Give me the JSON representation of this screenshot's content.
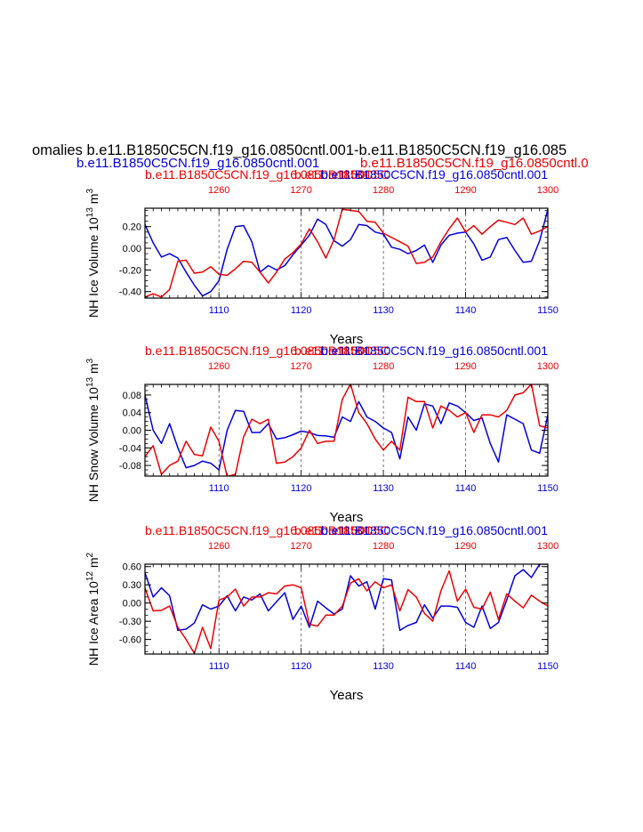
{
  "header": {
    "main_title": "omalies b.e11.B1850C5CN.f19_g16.0850cntl.001-b.e11.B1850C5CN.f19_g16.085",
    "left_case": "b.e11.B1850C5CN.f19_g16.0850cntl.001",
    "right_case": "b.e11.B1850C5CN.f19_g16.0850cntl.0"
  },
  "colors": {
    "red": "#ee0000",
    "blue": "#0000dd",
    "axis": "#000000",
    "grid": "#555555"
  },
  "chart_data": [
    {
      "type": "line",
      "ylabel_main": "NH Ice Volume 10",
      "ylabel_exp": "13",
      "ylabel_unit": " m",
      "ylabel_unit_exp": "3",
      "xlabel": "Years",
      "top_title_red": "b.e11.B1850C5CN.f19_g16.0850cntl.001",
      "top_title_blue": "b.e11.B1850C5CN.f19_g16.0850cntl.001",
      "top_title_overlap": "b.e11.B1850C5C",
      "xlim_bottom": [
        1101,
        1150
      ],
      "xlim_top": [
        1251,
        1300
      ],
      "xticks_bottom": [
        "1110",
        "1120",
        "1130",
        "1140",
        "1150"
      ],
      "xticks_top": [
        "1260",
        "1270",
        "1280",
        "1290",
        "1300"
      ],
      "ylim": [
        -0.46,
        0.37
      ],
      "yticks": [
        -0.4,
        -0.2,
        0.0,
        0.2
      ],
      "ytick_labels": [
        "-0.40",
        "-0.20",
        "0.00",
        "0.20"
      ],
      "yminor": 0.05,
      "grid_x": [
        1110,
        1120,
        1130,
        1140
      ],
      "series": [
        {
          "name": "b.e11.B1850C5CN.f19_g16.0850cntl.001 (blue)",
          "color": "blue",
          "values": [
            0.22,
            0.05,
            -0.08,
            -0.05,
            -0.09,
            -0.22,
            -0.34,
            -0.44,
            -0.4,
            -0.3,
            -0.01,
            0.2,
            0.21,
            0.06,
            -0.22,
            -0.16,
            -0.2,
            -0.16,
            -0.06,
            0.03,
            0.12,
            0.27,
            0.22,
            0.07,
            0.02,
            0.08,
            0.22,
            0.21,
            0.15,
            0.13,
            0.01,
            -0.01,
            -0.05,
            -0.02,
            0.03,
            -0.13,
            0.03,
            0.12,
            0.14,
            0.15,
            0.04,
            -0.11,
            -0.08,
            0.08,
            0.1,
            -0.02,
            -0.13,
            -0.12,
            0.07,
            0.36
          ]
        },
        {
          "name": "b.e11.B1850C5CN.f19_g16.0850cntl.001 (red)",
          "color": "red",
          "values": [
            -0.45,
            -0.42,
            -0.45,
            -0.38,
            -0.12,
            -0.11,
            -0.23,
            -0.22,
            -0.17,
            -0.24,
            -0.25,
            -0.19,
            -0.12,
            -0.13,
            -0.22,
            -0.32,
            -0.22,
            -0.1,
            -0.04,
            0.04,
            0.18,
            0.06,
            -0.09,
            0.08,
            0.36,
            0.35,
            0.34,
            0.25,
            0.24,
            0.14,
            0.1,
            0.06,
            0.02,
            -0.14,
            -0.13,
            -0.08,
            0.06,
            0.18,
            0.28,
            0.15,
            0.21,
            0.13,
            0.2,
            0.26,
            0.24,
            0.22,
            0.28,
            0.13,
            0.16,
            0.2
          ]
        }
      ]
    },
    {
      "type": "line",
      "ylabel_main": "NH Snow Volume 10",
      "ylabel_exp": "13",
      "ylabel_unit": " m",
      "ylabel_unit_exp": "3",
      "xlabel": "Years",
      "top_title_red": "b.e11.B1850C5CN.f19_g16.0850cntl.001",
      "top_title_blue": "b.e11.B1850C5CN.f19_g16.0850cntl.001",
      "top_title_overlap": "b.e11.B1850C5C",
      "xlim_bottom": [
        1101,
        1150
      ],
      "xlim_top": [
        1251,
        1300
      ],
      "xticks_bottom": [
        "1110",
        "1120",
        "1130",
        "1140",
        "1150"
      ],
      "xticks_top": [
        "1260",
        "1270",
        "1280",
        "1290",
        "1300"
      ],
      "ylim": [
        -0.104,
        0.104
      ],
      "yticks": [
        -0.08,
        -0.04,
        0.0,
        0.04,
        0.08
      ],
      "ytick_labels": [
        "-0.08",
        "-0.04",
        "0.00",
        "0.04",
        "0.08"
      ],
      "yminor": 0.01,
      "grid_x": [
        1110,
        1120,
        1130,
        1140
      ],
      "series": [
        {
          "name": "b.e11.B1850C5CN.f19_g16.0850cntl.001 (blue)",
          "color": "blue",
          "values": [
            0.08,
            0.0,
            -0.03,
            0.015,
            -0.04,
            -0.085,
            -0.08,
            -0.07,
            -0.075,
            -0.09,
            0.0,
            0.045,
            0.043,
            -0.005,
            -0.005,
            0.015,
            -0.02,
            -0.017,
            -0.01,
            -0.002,
            -0.005,
            -0.012,
            -0.013,
            -0.016,
            0.03,
            0.02,
            0.065,
            0.03,
            0.02,
            0.005,
            -0.005,
            -0.065,
            0.03,
            0.0,
            0.06,
            0.055,
            0.015,
            0.062,
            0.055,
            0.04,
            0.022,
            0.028,
            -0.03,
            -0.072,
            0.035,
            0.025,
            0.015,
            -0.045,
            -0.052,
            0.035
          ]
        },
        {
          "name": "b.e11.B1850C5CN.f19_g16.0850cntl.001 (red)",
          "color": "red",
          "values": [
            -0.06,
            -0.035,
            -0.1,
            -0.08,
            -0.07,
            -0.025,
            -0.055,
            -0.058,
            0.007,
            -0.025,
            -0.105,
            -0.1,
            -0.015,
            0.025,
            0.015,
            0.025,
            -0.075,
            -0.072,
            -0.06,
            -0.04,
            0.0,
            -0.03,
            -0.025,
            -0.025,
            0.07,
            0.105,
            0.04,
            0.015,
            -0.02,
            -0.045,
            -0.025,
            -0.045,
            0.075,
            0.065,
            0.065,
            0.005,
            0.055,
            0.045,
            0.03,
            0.04,
            -0.005,
            0.035,
            0.035,
            0.03,
            0.045,
            0.08,
            0.085,
            0.105,
            0.01,
            0.005
          ]
        }
      ]
    },
    {
      "type": "line",
      "ylabel_main": "NH Ice Area 10",
      "ylabel_exp": "12",
      "ylabel_unit": " m",
      "ylabel_unit_exp": "2",
      "xlabel": "Years",
      "top_title_red": "b.e11.B1850C5CN.f19_g16.0850cntl.001",
      "top_title_blue": "b.e11.B1850C5CN.f19_g16.0850cntl.001",
      "top_title_overlap": "b.e11.B1850C5C",
      "xlim_bottom": [
        1101,
        1150
      ],
      "xlim_top": [
        1251,
        1300
      ],
      "xticks_bottom": [
        "1110",
        "1120",
        "1130",
        "1140",
        "1150"
      ],
      "xticks_top": [
        "1260",
        "1270",
        "1280",
        "1290",
        "1300"
      ],
      "ylim": [
        -0.84,
        0.64
      ],
      "yticks": [
        -0.6,
        -0.3,
        0.0,
        0.3,
        0.6
      ],
      "ytick_labels": [
        "-0.60",
        "-0.30",
        "0.00",
        "0.30",
        "0.60"
      ],
      "yminor": 0.1,
      "grid_x": [
        1110,
        1120,
        1130,
        1140
      ],
      "series": [
        {
          "name": "b.e11.B1850C5CN.f19_g16.0850cntl.001 (blue)",
          "color": "blue",
          "values": [
            0.5,
            0.1,
            0.25,
            0.12,
            -0.45,
            -0.43,
            -0.33,
            -0.03,
            -0.1,
            -0.05,
            0.12,
            -0.13,
            0.1,
            0.05,
            0.15,
            -0.13,
            0.02,
            0.17,
            -0.27,
            -0.05,
            -0.4,
            0.03,
            -0.08,
            -0.18,
            -0.1,
            0.45,
            0.28,
            0.35,
            -0.1,
            0.4,
            0.38,
            -0.45,
            -0.37,
            -0.32,
            -0.03,
            -0.25,
            -0.05,
            -0.05,
            -0.07,
            -0.32,
            -0.4,
            -0.05,
            -0.42,
            -0.32,
            0.05,
            0.45,
            0.55,
            0.42,
            0.64,
            0.64
          ]
        },
        {
          "name": "b.e11.B1850C5CN.f19_g16.0850cntl.001 (red)",
          "color": "red",
          "values": [
            0.25,
            -0.13,
            -0.12,
            -0.05,
            -0.4,
            -0.6,
            -0.83,
            -0.4,
            -0.75,
            0.05,
            0.1,
            0.23,
            -0.05,
            0.1,
            0.1,
            0.17,
            0.15,
            0.28,
            0.3,
            0.25,
            -0.35,
            -0.38,
            -0.2,
            -0.2,
            -0.05,
            0.33,
            0.4,
            0.2,
            0.35,
            0.25,
            0.3,
            -0.13,
            0.22,
            0.1,
            -0.17,
            -0.3,
            0.2,
            0.53,
            0.03,
            0.23,
            -0.07,
            -0.1,
            0.18,
            -0.27,
            0.15,
            0.03,
            -0.08,
            0.13,
            0.03,
            -0.05
          ]
        }
      ]
    }
  ]
}
